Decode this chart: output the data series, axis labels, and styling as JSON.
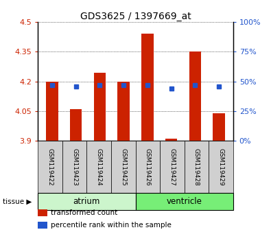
{
  "title": "GDS3625 / 1397669_at",
  "samples": [
    "GSM119422",
    "GSM119423",
    "GSM119424",
    "GSM119425",
    "GSM119426",
    "GSM119427",
    "GSM119428",
    "GSM119429"
  ],
  "bar_bottom": 3.9,
  "bar_tops": [
    4.2,
    4.06,
    4.245,
    4.198,
    4.44,
    3.912,
    4.35,
    4.04
  ],
  "blue_y": [
    4.183,
    4.175,
    4.183,
    4.183,
    4.183,
    4.163,
    4.183,
    4.173
  ],
  "ylim": [
    3.9,
    4.5
  ],
  "yticks_left": [
    3.9,
    4.05,
    4.2,
    4.35,
    4.5
  ],
  "yticks_right_pct": [
    0,
    25,
    50,
    75,
    100
  ],
  "bar_color": "#cc2200",
  "blue_color": "#2255cc",
  "bg_color": "#ffffff",
  "tissue_groups": [
    {
      "label": "atrium",
      "start": 0,
      "end": 3,
      "color": "#ccf5cc"
    },
    {
      "label": "ventricle",
      "start": 4,
      "end": 7,
      "color": "#77ee77"
    }
  ],
  "legend_items": [
    {
      "color": "#cc2200",
      "label": "transformed count"
    },
    {
      "color": "#2255cc",
      "label": "percentile rank within the sample"
    }
  ],
  "tissue_label": "tissue",
  "bar_width": 0.5
}
